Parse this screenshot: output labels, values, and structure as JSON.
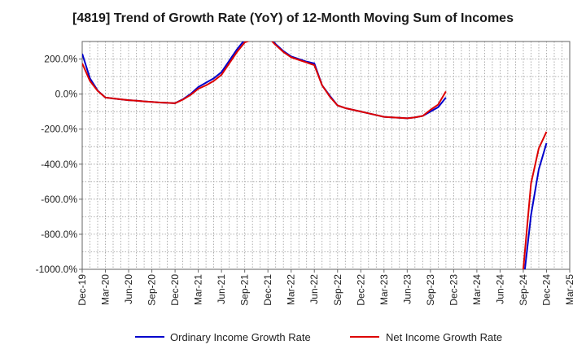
{
  "chart_data": {
    "type": "line",
    "title": "[4819]  Trend of Growth Rate (YoY) of 12-Month Moving Sum of Incomes",
    "xlabel": "",
    "ylabel": "",
    "ylim": [
      -1000,
      300
    ],
    "x_tick_labels": [
      "Dec-19",
      "Mar-20",
      "Jun-20",
      "Sep-20",
      "Dec-20",
      "Mar-21",
      "Jun-21",
      "Sep-21",
      "Dec-21",
      "Mar-22",
      "Jun-22",
      "Sep-22",
      "Dec-22",
      "Mar-23",
      "Jun-23",
      "Sep-23",
      "Dec-23",
      "Mar-24",
      "Jun-24",
      "Sep-24",
      "Dec-24",
      "Mar-25"
    ],
    "y_tick_values": [
      200,
      0,
      -200,
      -400,
      -600,
      -800,
      -1000
    ],
    "y_tick_labels": [
      "200.0%",
      "0.0%",
      "-200.0%",
      "-400.0%",
      "-600.0%",
      "-800.0%",
      "-1000.0%"
    ],
    "grid": true,
    "legend_position": "bottom",
    "x": [
      "2019-12",
      "2020-01",
      "2020-02",
      "2020-03",
      "2020-04",
      "2020-05",
      "2020-06",
      "2020-07",
      "2020-08",
      "2020-09",
      "2020-10",
      "2020-11",
      "2020-12",
      "2021-01",
      "2021-02",
      "2021-03",
      "2021-04",
      "2021-05",
      "2021-06",
      "2021-07",
      "2021-08",
      "2021-09",
      "2021-10",
      "2021-11",
      "2021-12",
      "2022-01",
      "2022-02",
      "2022-03",
      "2022-04",
      "2022-05",
      "2022-06",
      "2022-07",
      "2022-08",
      "2022-09",
      "2022-10",
      "2022-11",
      "2022-12",
      "2023-01",
      "2023-02",
      "2023-03",
      "2023-04",
      "2023-05",
      "2023-06",
      "2023-07",
      "2023-08",
      "2023-09",
      "2023-10",
      "2023-11",
      "2023-12",
      "2024-01",
      "2024-02",
      "2024-03",
      "2024-04",
      "2024-05",
      "2024-06",
      "2024-07",
      "2024-08",
      "2024-09",
      "2024-10",
      "2024-11",
      "2024-12"
    ],
    "series": [
      {
        "name": "Ordinary Income Growth Rate",
        "color": "#0000cc",
        "values": [
          230,
          90,
          20,
          -20,
          -25,
          -30,
          -35,
          -38,
          -42,
          -45,
          -48,
          -50,
          -52,
          -30,
          0,
          40,
          65,
          90,
          125,
          190,
          255,
          310,
          320,
          325,
          330,
          285,
          245,
          215,
          200,
          185,
          175,
          50,
          -10,
          -65,
          -80,
          -90,
          -100,
          -110,
          -120,
          -130,
          -133,
          -135,
          -138,
          -133,
          -125,
          -100,
          -75,
          -20,
          null,
          null,
          null,
          null,
          null,
          null,
          null,
          null,
          null,
          -1080,
          -690,
          -430,
          -280
        ]
      },
      {
        "name": "Net Income Growth Rate",
        "color": "#dd0000",
        "values": [
          175,
          75,
          18,
          -20,
          -25,
          -30,
          -35,
          -38,
          -42,
          -45,
          -48,
          -50,
          -52,
          -32,
          -5,
          30,
          50,
          75,
          110,
          175,
          240,
          295,
          310,
          315,
          325,
          280,
          240,
          210,
          195,
          180,
          165,
          50,
          -15,
          -65,
          -80,
          -90,
          -100,
          -110,
          -120,
          -130,
          -133,
          -135,
          -138,
          -133,
          -125,
          -90,
          -60,
          15,
          null,
          null,
          null,
          null,
          null,
          null,
          null,
          null,
          null,
          -1000,
          -510,
          -310,
          -215
        ]
      }
    ]
  }
}
